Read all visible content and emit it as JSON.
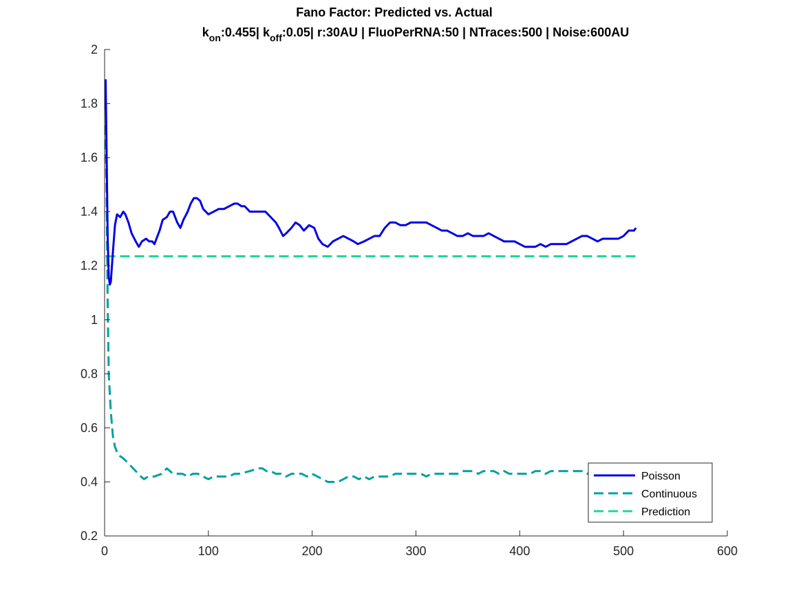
{
  "chart_data": {
    "type": "line",
    "title": "Fano Factor: Predicted vs. Actual",
    "subtitle": {
      "k_letter_1": "k",
      "sub_1": "on",
      "part_1": ":0.455| ",
      "k_letter_2": "k",
      "sub_2": "off",
      "part_2": ":0.05| r:30AU | FluoPerRNA:50 | NTraces:500 | Noise:600AU"
    },
    "xlabel": "",
    "ylabel": "",
    "xlim": [
      0,
      600
    ],
    "ylim": [
      0.2,
      2
    ],
    "xticks": [
      0,
      100,
      200,
      300,
      400,
      500,
      600
    ],
    "xtick_labels": [
      "0",
      "100",
      "200",
      "300",
      "400",
      "500",
      "600"
    ],
    "yticks": [
      0.2,
      0.4,
      0.6,
      0.8,
      1,
      1.2,
      1.4,
      1.6,
      1.8,
      2
    ],
    "ytick_labels": [
      "0.2",
      "0.4",
      "0.6",
      "0.8",
      "1",
      "1.2",
      "1.4",
      "1.6",
      "1.8",
      "2"
    ],
    "grid": false,
    "legend_position": "bottom-right",
    "series": [
      {
        "name": "Poisson",
        "color": "#0000e6",
        "style": "solid",
        "points": [
          [
            1,
            1.89
          ],
          [
            2,
            1.6
          ],
          [
            3,
            1.3
          ],
          [
            4,
            1.16
          ],
          [
            5,
            1.13
          ],
          [
            6,
            1.14
          ],
          [
            8,
            1.25
          ],
          [
            10,
            1.35
          ],
          [
            12,
            1.39
          ],
          [
            15,
            1.38
          ],
          [
            18,
            1.4
          ],
          [
            20,
            1.39
          ],
          [
            23,
            1.36
          ],
          [
            26,
            1.32
          ],
          [
            30,
            1.29
          ],
          [
            33,
            1.27
          ],
          [
            36,
            1.29
          ],
          [
            40,
            1.3
          ],
          [
            43,
            1.29
          ],
          [
            46,
            1.29
          ],
          [
            48,
            1.28
          ],
          [
            50,
            1.3
          ],
          [
            53,
            1.33
          ],
          [
            56,
            1.37
          ],
          [
            60,
            1.38
          ],
          [
            63,
            1.4
          ],
          [
            66,
            1.4
          ],
          [
            70,
            1.36
          ],
          [
            73,
            1.34
          ],
          [
            76,
            1.37
          ],
          [
            80,
            1.4
          ],
          [
            83,
            1.43
          ],
          [
            86,
            1.45
          ],
          [
            89,
            1.45
          ],
          [
            92,
            1.44
          ],
          [
            95,
            1.41
          ],
          [
            100,
            1.39
          ],
          [
            105,
            1.4
          ],
          [
            110,
            1.41
          ],
          [
            115,
            1.41
          ],
          [
            120,
            1.42
          ],
          [
            125,
            1.43
          ],
          [
            128,
            1.43
          ],
          [
            132,
            1.42
          ],
          [
            135,
            1.42
          ],
          [
            140,
            1.4
          ],
          [
            145,
            1.4
          ],
          [
            150,
            1.4
          ],
          [
            155,
            1.4
          ],
          [
            160,
            1.38
          ],
          [
            165,
            1.36
          ],
          [
            168,
            1.34
          ],
          [
            172,
            1.31
          ],
          [
            175,
            1.32
          ],
          [
            180,
            1.34
          ],
          [
            184,
            1.36
          ],
          [
            188,
            1.35
          ],
          [
            192,
            1.33
          ],
          [
            197,
            1.35
          ],
          [
            202,
            1.34
          ],
          [
            206,
            1.3
          ],
          [
            210,
            1.28
          ],
          [
            215,
            1.27
          ],
          [
            220,
            1.29
          ],
          [
            225,
            1.3
          ],
          [
            230,
            1.31
          ],
          [
            235,
            1.3
          ],
          [
            240,
            1.29
          ],
          [
            244,
            1.28
          ],
          [
            250,
            1.29
          ],
          [
            255,
            1.3
          ],
          [
            260,
            1.31
          ],
          [
            265,
            1.31
          ],
          [
            270,
            1.34
          ],
          [
            275,
            1.36
          ],
          [
            280,
            1.36
          ],
          [
            285,
            1.35
          ],
          [
            290,
            1.35
          ],
          [
            295,
            1.36
          ],
          [
            300,
            1.36
          ],
          [
            305,
            1.36
          ],
          [
            310,
            1.36
          ],
          [
            315,
            1.35
          ],
          [
            320,
            1.34
          ],
          [
            325,
            1.33
          ],
          [
            330,
            1.33
          ],
          [
            335,
            1.32
          ],
          [
            340,
            1.31
          ],
          [
            345,
            1.31
          ],
          [
            350,
            1.32
          ],
          [
            355,
            1.31
          ],
          [
            360,
            1.31
          ],
          [
            365,
            1.31
          ],
          [
            370,
            1.32
          ],
          [
            375,
            1.31
          ],
          [
            380,
            1.3
          ],
          [
            385,
            1.29
          ],
          [
            390,
            1.29
          ],
          [
            395,
            1.29
          ],
          [
            400,
            1.28
          ],
          [
            405,
            1.27
          ],
          [
            410,
            1.27
          ],
          [
            415,
            1.27
          ],
          [
            420,
            1.28
          ],
          [
            425,
            1.27
          ],
          [
            430,
            1.28
          ],
          [
            435,
            1.28
          ],
          [
            440,
            1.28
          ],
          [
            445,
            1.28
          ],
          [
            450,
            1.29
          ],
          [
            455,
            1.3
          ],
          [
            460,
            1.31
          ],
          [
            465,
            1.31
          ],
          [
            470,
            1.3
          ],
          [
            475,
            1.29
          ],
          [
            480,
            1.3
          ],
          [
            485,
            1.3
          ],
          [
            490,
            1.3
          ],
          [
            495,
            1.3
          ],
          [
            500,
            1.31
          ],
          [
            505,
            1.33
          ],
          [
            510,
            1.33
          ],
          [
            512,
            1.34
          ]
        ]
      },
      {
        "name": "Continuous",
        "color": "#00a0a0",
        "style": "dashed",
        "points": [
          [
            1,
            1.72
          ],
          [
            2,
            1.45
          ],
          [
            3,
            1.05
          ],
          [
            4,
            0.8
          ],
          [
            6,
            0.66
          ],
          [
            8,
            0.57
          ],
          [
            10,
            0.53
          ],
          [
            13,
            0.5
          ],
          [
            17,
            0.49
          ],
          [
            20,
            0.48
          ],
          [
            25,
            0.46
          ],
          [
            30,
            0.44
          ],
          [
            35,
            0.42
          ],
          [
            38,
            0.41
          ],
          [
            42,
            0.42
          ],
          [
            48,
            0.42
          ],
          [
            55,
            0.43
          ],
          [
            60,
            0.45
          ],
          [
            63,
            0.44
          ],
          [
            66,
            0.43
          ],
          [
            70,
            0.43
          ],
          [
            75,
            0.43
          ],
          [
            80,
            0.42
          ],
          [
            85,
            0.43
          ],
          [
            90,
            0.43
          ],
          [
            95,
            0.42
          ],
          [
            100,
            0.41
          ],
          [
            105,
            0.42
          ],
          [
            110,
            0.42
          ],
          [
            115,
            0.42
          ],
          [
            120,
            0.42
          ],
          [
            125,
            0.43
          ],
          [
            130,
            0.43
          ],
          [
            140,
            0.44
          ],
          [
            148,
            0.45
          ],
          [
            152,
            0.45
          ],
          [
            156,
            0.44
          ],
          [
            160,
            0.44
          ],
          [
            165,
            0.43
          ],
          [
            170,
            0.43
          ],
          [
            175,
            0.42
          ],
          [
            180,
            0.43
          ],
          [
            185,
            0.43
          ],
          [
            190,
            0.43
          ],
          [
            195,
            0.42
          ],
          [
            200,
            0.43
          ],
          [
            205,
            0.42
          ],
          [
            210,
            0.41
          ],
          [
            215,
            0.4
          ],
          [
            220,
            0.4
          ],
          [
            225,
            0.4
          ],
          [
            230,
            0.41
          ],
          [
            235,
            0.42
          ],
          [
            240,
            0.42
          ],
          [
            245,
            0.41
          ],
          [
            250,
            0.42
          ],
          [
            255,
            0.41
          ],
          [
            260,
            0.42
          ],
          [
            265,
            0.42
          ],
          [
            270,
            0.42
          ],
          [
            275,
            0.42
          ],
          [
            280,
            0.43
          ],
          [
            285,
            0.43
          ],
          [
            290,
            0.43
          ],
          [
            295,
            0.43
          ],
          [
            300,
            0.43
          ],
          [
            305,
            0.43
          ],
          [
            310,
            0.42
          ],
          [
            315,
            0.43
          ],
          [
            320,
            0.43
          ],
          [
            325,
            0.43
          ],
          [
            330,
            0.43
          ],
          [
            335,
            0.43
          ],
          [
            340,
            0.43
          ],
          [
            345,
            0.44
          ],
          [
            350,
            0.44
          ],
          [
            355,
            0.44
          ],
          [
            360,
            0.43
          ],
          [
            365,
            0.44
          ],
          [
            370,
            0.44
          ],
          [
            375,
            0.44
          ],
          [
            380,
            0.43
          ],
          [
            385,
            0.44
          ],
          [
            390,
            0.43
          ],
          [
            395,
            0.43
          ],
          [
            400,
            0.43
          ],
          [
            405,
            0.43
          ],
          [
            410,
            0.43
          ],
          [
            415,
            0.44
          ],
          [
            420,
            0.44
          ],
          [
            425,
            0.43
          ],
          [
            430,
            0.44
          ],
          [
            435,
            0.44
          ],
          [
            440,
            0.44
          ],
          [
            445,
            0.44
          ],
          [
            450,
            0.44
          ],
          [
            455,
            0.44
          ],
          [
            460,
            0.44
          ],
          [
            465,
            0.43
          ],
          [
            470,
            0.44
          ],
          [
            475,
            0.43
          ],
          [
            480,
            0.44
          ],
          [
            485,
            0.44
          ],
          [
            490,
            0.43
          ],
          [
            495,
            0.43
          ],
          [
            500,
            0.44
          ],
          [
            505,
            0.44
          ],
          [
            510,
            0.43
          ],
          [
            512,
            0.43
          ]
        ]
      },
      {
        "name": "Prediction",
        "color": "#1ed695",
        "style": "dashed",
        "points": [
          [
            1,
            1.235
          ],
          [
            512,
            1.235
          ]
        ]
      }
    ]
  }
}
